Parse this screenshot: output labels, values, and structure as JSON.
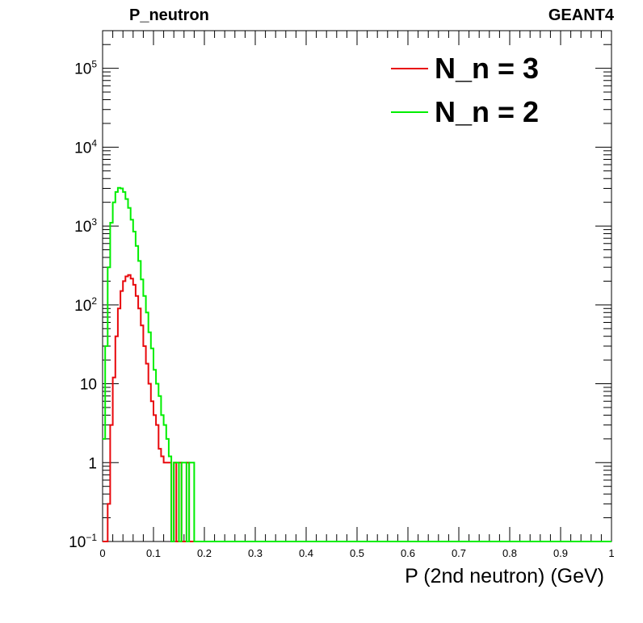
{
  "chart_data": {
    "type": "line",
    "title_left": "P_neutron",
    "title_right": "GEANT4",
    "xlabel": "P (2nd neutron) (GeV)",
    "ylabel": "",
    "xlim": [
      0,
      1
    ],
    "ylim": [
      0.1,
      300000
    ],
    "yscale": "log",
    "grid": false,
    "legend_placement": "top-right",
    "x_ticks": [
      "0",
      "0.1",
      "0.2",
      "0.3",
      "0.4",
      "0.5",
      "0.6",
      "0.7",
      "0.8",
      "0.9",
      "1"
    ],
    "y_ticks": [
      {
        "value": 0.1,
        "base": "10",
        "exp": "−1"
      },
      {
        "value": 1,
        "base": "1",
        "exp": ""
      },
      {
        "value": 10,
        "base": "10",
        "exp": ""
      },
      {
        "value": 100,
        "base": "10",
        "exp": "2"
      },
      {
        "value": 1000,
        "base": "10",
        "exp": "3"
      },
      {
        "value": 10000,
        "base": "10",
        "exp": "4"
      },
      {
        "value": 100000,
        "base": "10",
        "exp": "5"
      }
    ],
    "series": [
      {
        "name": "N_n = 3",
        "color": "#e8080c",
        "x": [
          0.0,
          0.005,
          0.01,
          0.015,
          0.02,
          0.025,
          0.03,
          0.035,
          0.04,
          0.045,
          0.05,
          0.055,
          0.06,
          0.065,
          0.07,
          0.075,
          0.08,
          0.085,
          0.09,
          0.095,
          0.1,
          0.105,
          0.11,
          0.115,
          0.12,
          0.125,
          0.13,
          0.135,
          0.14,
          0.145,
          0.15,
          0.155,
          0.16,
          0.165,
          0.17,
          0.175,
          0.18,
          0.2,
          1.0
        ],
        "y": [
          0.1,
          0.1,
          0.3,
          3,
          12,
          40,
          90,
          150,
          200,
          230,
          240,
          215,
          180,
          130,
          90,
          55,
          30,
          18,
          10,
          6,
          4,
          3,
          1.5,
          1.2,
          1,
          1,
          1,
          0.1,
          1,
          0.1,
          1,
          0.1,
          0.1,
          1,
          0.1,
          0.1,
          0.1,
          0.1,
          0.1
        ]
      },
      {
        "name": "N_n = 2",
        "color": "#00ee00",
        "x": [
          0.0,
          0.005,
          0.01,
          0.015,
          0.02,
          0.025,
          0.03,
          0.035,
          0.04,
          0.045,
          0.05,
          0.055,
          0.06,
          0.065,
          0.07,
          0.075,
          0.08,
          0.085,
          0.09,
          0.095,
          0.1,
          0.105,
          0.11,
          0.115,
          0.12,
          0.125,
          0.13,
          0.135,
          0.14,
          0.145,
          0.15,
          0.155,
          0.16,
          0.165,
          0.17,
          0.175,
          0.18,
          0.2,
          1.0
        ],
        "y": [
          2,
          30,
          300,
          1100,
          2000,
          2700,
          3050,
          3000,
          2700,
          2200,
          1700,
          1200,
          850,
          560,
          360,
          210,
          130,
          80,
          45,
          28,
          15,
          10,
          7,
          4,
          3,
          2,
          1.2,
          0.1,
          1,
          1,
          0.1,
          1,
          1,
          0.1,
          1,
          1,
          0.1,
          0.1,
          0.1
        ]
      }
    ]
  }
}
